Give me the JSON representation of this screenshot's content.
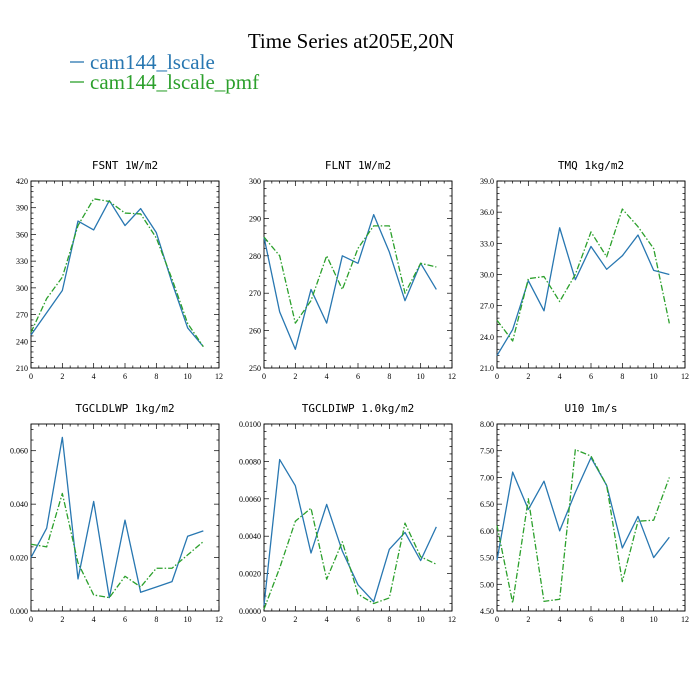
{
  "figure": {
    "title": "Time Series at205E,20N",
    "series_names": [
      "cam144_lscale",
      "cam144_lscale_pmf"
    ],
    "series_colors": [
      "#2877b1",
      "#2ca02c"
    ],
    "series_styles": [
      "solid",
      "dashdot"
    ]
  },
  "chart_data": [
    {
      "type": "line",
      "title": "FSNT   1W/m2",
      "xlim": [
        0,
        12
      ],
      "ylim": [
        210,
        420
      ],
      "xticks": [
        "0",
        "2",
        "4",
        "6",
        "8",
        "10",
        "12"
      ],
      "xtick_values": [
        0,
        2,
        4,
        6,
        8,
        10,
        12
      ],
      "yticks": [
        "210",
        "240",
        "270",
        "300",
        "330",
        "360",
        "390",
        "420"
      ],
      "ytick_values": [
        210,
        240,
        270,
        300,
        330,
        360,
        390,
        420
      ],
      "x": [
        0,
        1,
        2,
        3,
        4,
        5,
        6,
        7,
        8,
        9,
        10,
        11
      ],
      "series": [
        {
          "name": "cam144_lscale",
          "values": [
            247,
            272,
            297,
            375,
            365,
            398,
            370,
            389,
            362,
            306,
            255,
            234
          ]
        },
        {
          "name": "cam144_lscale_pmf",
          "values": [
            250,
            288,
            312,
            370,
            400,
            397,
            384,
            383,
            356,
            310,
            260,
            234
          ]
        }
      ]
    },
    {
      "type": "line",
      "title": "FLNT   1W/m2",
      "xlim": [
        0,
        12
      ],
      "ylim": [
        250,
        300
      ],
      "xticks": [
        "0",
        "2",
        "4",
        "6",
        "8",
        "10",
        "12"
      ],
      "xtick_values": [
        0,
        2,
        4,
        6,
        8,
        10,
        12
      ],
      "yticks": [
        "250",
        "260",
        "270",
        "280",
        "290",
        "300"
      ],
      "ytick_values": [
        250,
        260,
        270,
        280,
        290,
        300
      ],
      "x": [
        0,
        1,
        2,
        3,
        4,
        5,
        6,
        7,
        8,
        9,
        10,
        11
      ],
      "series": [
        {
          "name": "cam144_lscale",
          "values": [
            285,
            265,
            255,
            271,
            262,
            280,
            278,
            291,
            281,
            268,
            278,
            271
          ]
        },
        {
          "name": "cam144_lscale_pmf",
          "values": [
            285,
            280,
            262,
            268,
            280,
            271,
            282,
            288,
            288,
            270,
            278,
            277
          ]
        }
      ]
    },
    {
      "type": "line",
      "title": "TMQ   1kg/m2",
      "xlim": [
        0,
        12
      ],
      "ylim": [
        21.0,
        39.0
      ],
      "xticks": [
        "0",
        "2",
        "4",
        "6",
        "8",
        "10",
        "12"
      ],
      "xtick_values": [
        0,
        2,
        4,
        6,
        8,
        10,
        12
      ],
      "yticks": [
        "21.0",
        "24.0",
        "27.0",
        "30.0",
        "33.0",
        "36.0",
        "39.0"
      ],
      "ytick_values": [
        21,
        24,
        27,
        30,
        33,
        36,
        39
      ],
      "x": [
        0,
        1,
        2,
        3,
        4,
        5,
        6,
        7,
        8,
        9,
        10,
        11
      ],
      "series": [
        {
          "name": "cam144_lscale",
          "values": [
            22.2,
            24.7,
            29.4,
            26.5,
            34.5,
            29.5,
            32.7,
            30.5,
            31.8,
            33.8,
            30.4,
            30.0
          ]
        },
        {
          "name": "cam144_lscale_pmf",
          "values": [
            25.6,
            23.6,
            29.6,
            29.8,
            27.4,
            30.0,
            34.1,
            31.7,
            36.3,
            34.6,
            32.5,
            25.3
          ]
        }
      ]
    },
    {
      "type": "line",
      "title": "TGCLDLWP   1kg/m2",
      "xlim": [
        0,
        12
      ],
      "ylim": [
        0.0,
        0.07
      ],
      "xticks": [
        "0",
        "2",
        "4",
        "6",
        "8",
        "10",
        "12"
      ],
      "xtick_values": [
        0,
        2,
        4,
        6,
        8,
        10,
        12
      ],
      "yticks": [
        "0.000",
        "0.020",
        "0.040",
        "0.060"
      ],
      "ytick_values": [
        0.0,
        0.02,
        0.04,
        0.06
      ],
      "x": [
        0,
        1,
        2,
        3,
        4,
        5,
        6,
        7,
        8,
        9,
        10,
        11
      ],
      "series": [
        {
          "name": "cam144_lscale",
          "values": [
            0.02,
            0.031,
            0.065,
            0.012,
            0.041,
            0.005,
            0.034,
            0.007,
            0.009,
            0.011,
            0.028,
            0.03
          ]
        },
        {
          "name": "cam144_lscale_pmf",
          "values": [
            0.025,
            0.024,
            0.044,
            0.018,
            0.006,
            0.005,
            0.013,
            0.009,
            0.016,
            0.016,
            0.021,
            0.026
          ]
        }
      ]
    },
    {
      "type": "line",
      "title": "TGCLDIWP   1.0kg/m2",
      "xlim": [
        0,
        12
      ],
      "ylim": [
        0.0,
        0.01
      ],
      "xticks": [
        "0",
        "2",
        "4",
        "6",
        "8",
        "10",
        "12"
      ],
      "xtick_values": [
        0,
        2,
        4,
        6,
        8,
        10,
        12
      ],
      "yticks": [
        "0.0000",
        "0.0020",
        "0.0040",
        "0.0060",
        "0.0080",
        "0.0100"
      ],
      "ytick_values": [
        0.0,
        0.002,
        0.004,
        0.006,
        0.008,
        0.01
      ],
      "x": [
        0,
        1,
        2,
        3,
        4,
        5,
        6,
        7,
        8,
        9,
        10,
        11
      ],
      "series": [
        {
          "name": "cam144_lscale",
          "values": [
            0.0003,
            0.0081,
            0.0067,
            0.0031,
            0.0057,
            0.0032,
            0.0014,
            0.0005,
            0.0033,
            0.0042,
            0.0027,
            0.0045
          ]
        },
        {
          "name": "cam144_lscale_pmf",
          "values": [
            0.0001,
            0.0023,
            0.0048,
            0.0055,
            0.0017,
            0.0037,
            0.0009,
            0.0004,
            0.0007,
            0.0047,
            0.0029,
            0.0025
          ]
        }
      ]
    },
    {
      "type": "line",
      "title": "U10   1m/s",
      "xlim": [
        0,
        12
      ],
      "ylim": [
        4.5,
        8.0
      ],
      "xticks": [
        "0",
        "2",
        "4",
        "6",
        "8",
        "10",
        "12"
      ],
      "xtick_values": [
        0,
        2,
        4,
        6,
        8,
        10,
        12
      ],
      "yticks": [
        "4.50",
        "5.00",
        "5.50",
        "6.00",
        "6.50",
        "7.00",
        "7.50",
        "8.00"
      ],
      "ytick_values": [
        4.5,
        5.0,
        5.5,
        6.0,
        6.5,
        7.0,
        7.5,
        8.0
      ],
      "x": [
        0,
        1,
        2,
        3,
        4,
        5,
        6,
        7,
        8,
        9,
        10,
        11
      ],
      "series": [
        {
          "name": "cam144_lscale",
          "values": [
            5.45,
            7.1,
            6.4,
            6.93,
            6.0,
            6.72,
            7.37,
            6.85,
            5.68,
            6.27,
            5.5,
            5.88
          ]
        },
        {
          "name": "cam144_lscale_pmf",
          "values": [
            6.1,
            4.65,
            6.6,
            4.68,
            4.72,
            7.52,
            7.4,
            6.85,
            5.05,
            6.18,
            6.2,
            7.0
          ]
        }
      ]
    }
  ]
}
